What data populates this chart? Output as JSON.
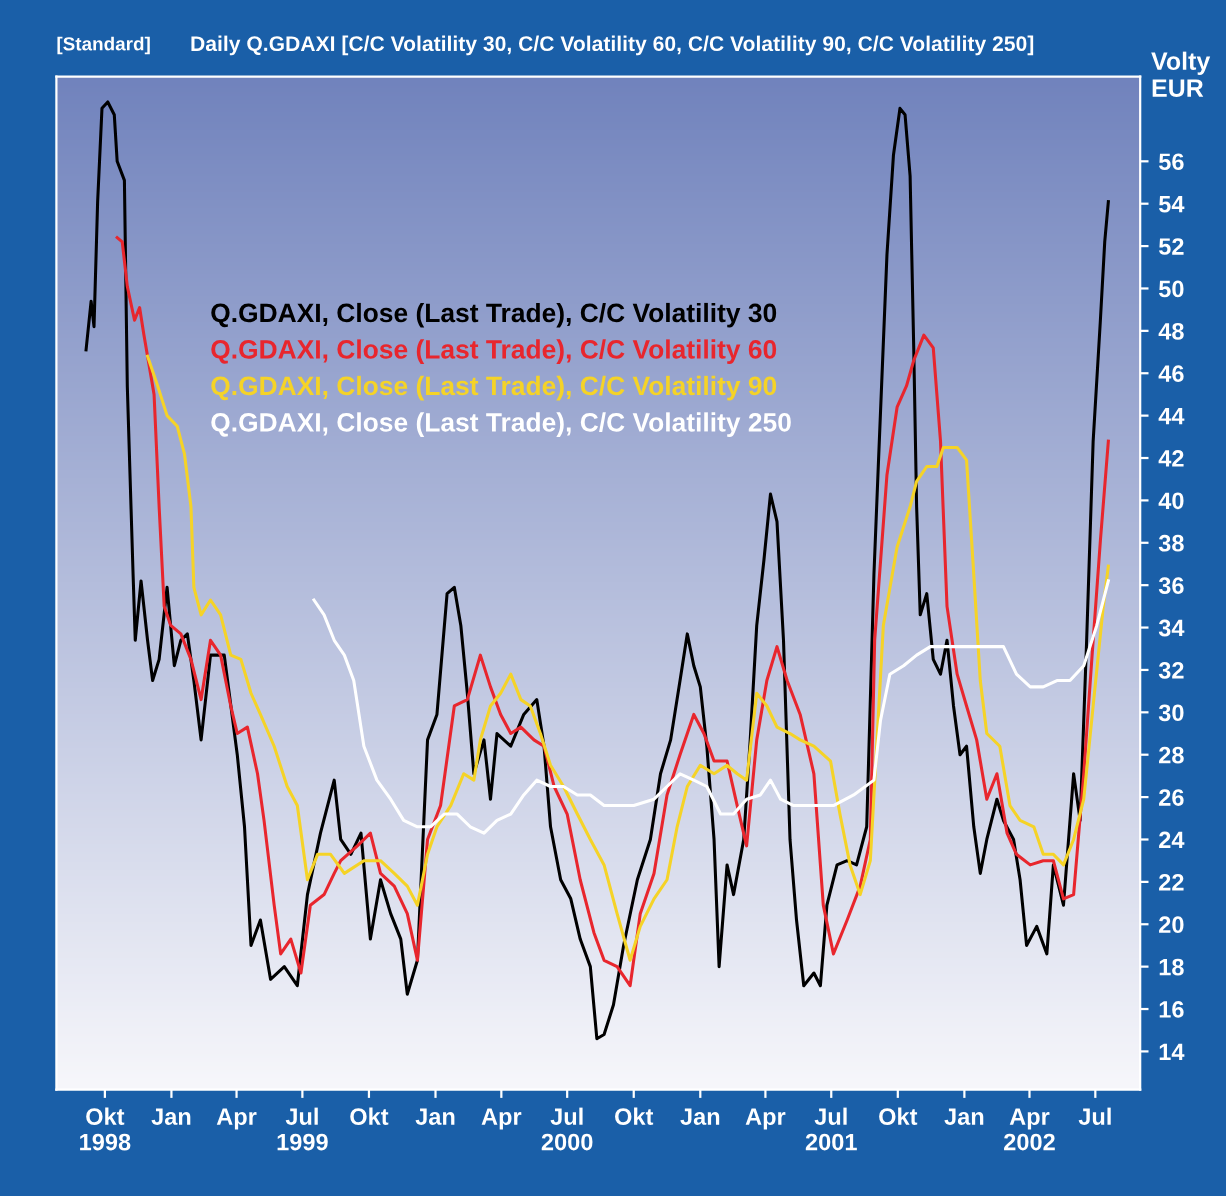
{
  "chart_data": {
    "type": "line",
    "title": "Daily Q.GDAXI [C/C Volatility 30, C/C Volatility 60, C/C Volatility 90, C/C Volatility 250]",
    "subtitle": "[Standard]",
    "ylabel": "Volty\nEUR",
    "legend": "top left",
    "line_style": "solid",
    "xlim": [
      "1998-07-26",
      "2002-09-01"
    ],
    "ylim": [
      12.2,
      60
    ],
    "yticks": [
      14,
      16,
      18,
      20,
      22,
      24,
      26,
      28,
      30,
      32,
      34,
      36,
      38,
      40,
      42,
      44,
      46,
      48,
      50,
      52,
      54,
      56
    ],
    "xticks": [
      {
        "value": "1998-10-01",
        "label": "Okt\n1998"
      },
      {
        "value": "1999-01-01",
        "label": "Jan"
      },
      {
        "value": "1999-04-01",
        "label": "Apr"
      },
      {
        "value": "1999-07-01",
        "label": "Jul\n1999"
      },
      {
        "value": "1999-10-01",
        "label": "Okt"
      },
      {
        "value": "2000-01-01",
        "label": "Jan"
      },
      {
        "value": "2000-04-01",
        "label": "Apr"
      },
      {
        "value": "2000-07-01",
        "label": "Jul\n2000"
      },
      {
        "value": "2000-10-01",
        "label": "Okt"
      },
      {
        "value": "2001-01-01",
        "label": "Jan"
      },
      {
        "value": "2001-04-01",
        "label": "Apr"
      },
      {
        "value": "2001-07-01",
        "label": "Jul\n2001"
      },
      {
        "value": "2001-10-01",
        "label": "Okt"
      },
      {
        "value": "2002-01-01",
        "label": "Jan"
      },
      {
        "value": "2002-04-01",
        "label": "Apr\n2002"
      },
      {
        "value": "2002-07-01",
        "label": "Jul"
      }
    ],
    "series": [
      {
        "name": "Q.GDAXI, Close (Last Trade), C/C Volatility 30",
        "color": "#000000",
        "x": [
          "1998-09-05",
          "1998-09-12",
          "1998-09-16",
          "1998-09-21",
          "1998-09-27",
          "1998-10-05",
          "1998-10-14",
          "1998-10-18",
          "1998-10-28",
          "1998-11-01",
          "1998-11-09",
          "1998-11-12",
          "1998-11-20",
          "1998-11-29",
          "1998-12-06",
          "1998-12-15",
          "1998-12-26",
          "1999-01-05",
          "1999-01-14",
          "1999-01-23",
          "1999-02-01",
          "1999-02-11",
          "1999-02-24",
          "1999-03-15",
          "1999-04-02",
          "1999-04-12",
          "1999-04-21",
          "1999-05-04",
          "1999-05-18",
          "1999-06-06",
          "1999-06-24",
          "1999-07-08",
          "1999-07-26",
          "1999-08-14",
          "1999-08-23",
          "1999-09-06",
          "1999-09-20",
          "1999-10-03",
          "1999-10-17",
          "1999-10-31",
          "1999-11-14",
          "1999-11-23",
          "1999-12-07",
          "1999-12-21",
          "2000-01-03",
          "2000-01-17",
          "2000-01-27",
          "2000-02-05",
          "2000-02-14",
          "2000-02-23",
          "2000-03-08",
          "2000-03-17",
          "2000-03-26",
          "2000-04-14",
          "2000-05-02",
          "2000-05-20",
          "2000-05-30",
          "2000-06-08",
          "2000-06-22",
          "2000-07-06",
          "2000-07-19",
          "2000-08-02",
          "2000-08-11",
          "2000-08-21",
          "2000-09-03",
          "2000-09-17",
          "2000-10-06",
          "2000-10-24",
          "2000-11-07",
          "2000-11-21",
          "2000-12-04",
          "2000-12-14",
          "2000-12-23",
          "2001-01-01",
          "2001-01-10",
          "2001-01-20",
          "2001-01-27",
          "2001-02-07",
          "2001-02-16",
          "2001-03-02",
          "2001-03-11",
          "2001-03-20",
          "2001-03-30",
          "2001-04-08",
          "2001-04-17",
          "2001-04-26",
          "2001-05-05",
          "2001-05-14",
          "2001-05-24",
          "2001-06-07",
          "2001-06-16",
          "2001-06-25",
          "2001-07-09",
          "2001-07-23",
          "2001-08-05",
          "2001-08-19",
          "2001-08-29",
          "2001-09-04",
          "2001-09-16",
          "2001-09-25",
          "2001-10-04",
          "2001-10-11",
          "2001-10-18",
          "2001-10-23",
          "2001-10-27",
          "2001-11-01",
          "2001-11-10",
          "2001-11-19",
          "2001-11-29",
          "2001-12-08",
          "2001-12-17",
          "2001-12-26",
          "2002-01-04",
          "2002-01-14",
          "2002-01-23",
          "2002-02-01",
          "2002-02-15",
          "2002-02-24",
          "2002-03-10",
          "2002-03-19",
          "2002-03-28",
          "2002-04-11",
          "2002-04-25",
          "2002-05-04",
          "2002-05-18",
          "2002-06-01",
          "2002-06-10",
          "2002-06-19",
          "2002-06-28",
          "2002-07-08",
          "2002-07-14",
          "2002-07-19"
        ],
        "values": [
          47.1,
          49.4,
          48.2,
          54.1,
          58.5,
          58.8,
          58.2,
          56.0,
          55.1,
          45.4,
          36.5,
          33.4,
          36.2,
          33.4,
          31.5,
          32.5,
          35.9,
          32.2,
          33.4,
          33.7,
          31.5,
          28.7,
          32.7,
          32.7,
          28.0,
          24.6,
          19.0,
          20.2,
          17.4,
          18.0,
          17.1,
          21.4,
          24.3,
          26.8,
          24.0,
          23.3,
          24.3,
          19.3,
          22.1,
          20.5,
          19.3,
          16.7,
          18.3,
          28.7,
          29.9,
          35.6,
          35.9,
          34.1,
          30.9,
          27.1,
          28.7,
          25.9,
          29.0,
          28.4,
          29.9,
          30.6,
          28.4,
          24.6,
          22.1,
          21.2,
          19.3,
          18.0,
          14.6,
          14.8,
          16.2,
          19.0,
          22.1,
          24.0,
          27.1,
          28.7,
          31.5,
          33.7,
          32.2,
          31.2,
          28.4,
          24.0,
          18.0,
          22.8,
          21.4,
          24.0,
          28.7,
          34.1,
          37.2,
          40.3,
          39.0,
          33.4,
          24.0,
          20.2,
          17.1,
          17.7,
          17.1,
          20.9,
          22.8,
          23.0,
          22.8,
          24.6,
          36.5,
          41.6,
          51.6,
          56.3,
          58.5,
          58.2,
          55.3,
          47.2,
          39.7,
          34.6,
          35.6,
          32.5,
          31.8,
          33.4,
          30.3,
          28.0,
          28.4,
          24.6,
          22.4,
          24.0,
          25.9,
          24.9,
          24.0,
          22.1,
          19.0,
          19.9,
          18.6,
          22.8,
          20.9,
          27.1,
          24.9,
          33.4,
          42.8,
          48.5,
          52.2,
          54.1
        ]
      },
      {
        "name": "Q.GDAXI, Close (Last Trade), C/C Volatility 60",
        "color": "#e8262d",
        "x": [
          "1998-10-18",
          "1998-10-25",
          "1998-11-01",
          "1998-11-11",
          "1998-11-18",
          "1998-11-24",
          "1998-12-08",
          "1998-12-15",
          "1998-12-22",
          "1998-12-31",
          "1999-01-14",
          "1999-01-28",
          "1999-02-11",
          "1999-02-24",
          "1999-03-10",
          "1999-03-24",
          "1999-04-02",
          "1999-04-16",
          "1999-04-30",
          "1999-05-09",
          "1999-05-23",
          "1999-06-01",
          "1999-06-15",
          "1999-06-29",
          "1999-07-12",
          "1999-07-31",
          "1999-08-14",
          "1999-08-23",
          "1999-09-15",
          "1999-10-03",
          "1999-10-17",
          "1999-11-05",
          "1999-11-23",
          "1999-12-07",
          "1999-12-21",
          "2000-01-08",
          "2000-01-27",
          "2000-02-14",
          "2000-03-03",
          "2000-03-17",
          "2000-03-31",
          "2000-04-14",
          "2000-04-28",
          "2000-05-16",
          "2000-05-30",
          "2000-06-13",
          "2000-07-01",
          "2000-07-19",
          "2000-08-07",
          "2000-08-21",
          "2000-09-08",
          "2000-09-26",
          "2000-10-10",
          "2000-10-29",
          "2000-11-16",
          "2000-12-04",
          "2000-12-23",
          "2001-01-06",
          "2001-01-20",
          "2001-02-07",
          "2001-02-21",
          "2001-03-06",
          "2001-03-20",
          "2001-04-03",
          "2001-04-17",
          "2001-05-01",
          "2001-05-19",
          "2001-06-07",
          "2001-06-20",
          "2001-07-04",
          "2001-07-23",
          "2001-08-10",
          "2001-08-24",
          "2001-08-30",
          "2001-09-16",
          "2001-09-30",
          "2001-10-13",
          "2001-10-23",
          "2001-11-06",
          "2001-11-19",
          "2001-11-29",
          "2001-12-08",
          "2001-12-22",
          "2002-01-04",
          "2002-01-18",
          "2002-02-01",
          "2002-02-15",
          "2002-03-01",
          "2002-03-14",
          "2002-04-02",
          "2002-04-20",
          "2002-05-04",
          "2002-05-18",
          "2002-06-01",
          "2002-06-15",
          "2002-06-28",
          "2002-07-08",
          "2002-07-19"
        ],
        "values": [
          52.4,
          52.2,
          50.1,
          48.5,
          49.1,
          47.8,
          45.0,
          39.7,
          35.0,
          34.1,
          33.7,
          32.5,
          30.6,
          33.4,
          32.7,
          30.3,
          29.0,
          29.3,
          27.1,
          24.9,
          20.9,
          18.6,
          19.3,
          17.7,
          20.9,
          21.4,
          22.4,
          23.0,
          23.7,
          24.3,
          22.4,
          21.8,
          20.5,
          18.3,
          24.0,
          25.6,
          30.3,
          30.6,
          32.7,
          31.2,
          29.9,
          29.0,
          29.3,
          28.7,
          28.4,
          26.5,
          25.2,
          22.1,
          19.6,
          18.3,
          18.0,
          17.1,
          20.5,
          22.4,
          26.1,
          28.0,
          29.9,
          29.0,
          27.7,
          27.7,
          25.6,
          23.7,
          28.7,
          31.5,
          33.1,
          31.5,
          29.9,
          27.1,
          20.9,
          18.6,
          20.2,
          21.8,
          24.0,
          33.4,
          41.2,
          44.4,
          45.4,
          46.6,
          47.8,
          47.2,
          42.8,
          35.0,
          31.8,
          30.3,
          28.7,
          25.9,
          27.1,
          24.3,
          23.3,
          22.8,
          23.0,
          23.0,
          21.2,
          21.4,
          27.1,
          33.4,
          38.1,
          42.8
        ]
      },
      {
        "name": "Q.GDAXI, Close (Last Trade), C/C Volatility 90",
        "color": "#f5d327",
        "x": [
          "1998-11-29",
          "1998-12-13",
          "1998-12-26",
          "1999-01-09",
          "1999-01-19",
          "1999-01-28",
          "1999-02-01",
          "1999-02-11",
          "1999-02-24",
          "1999-03-10",
          "1999-03-24",
          "1999-04-07",
          "1999-04-21",
          "1999-05-04",
          "1999-05-23",
          "1999-06-10",
          "1999-06-24",
          "1999-07-08",
          "1999-07-22",
          "1999-08-09",
          "1999-08-28",
          "1999-09-24",
          "1999-10-17",
          "1999-11-05",
          "1999-11-23",
          "1999-12-07",
          "1999-12-21",
          "2000-01-03",
          "2000-01-22",
          "2000-02-09",
          "2000-02-23",
          "2000-03-03",
          "2000-03-17",
          "2000-03-31",
          "2000-04-14",
          "2000-04-28",
          "2000-05-11",
          "2000-05-25",
          "2000-06-08",
          "2000-06-26",
          "2000-07-15",
          "2000-08-02",
          "2000-08-21",
          "2000-09-08",
          "2000-09-26",
          "2000-10-10",
          "2000-10-29",
          "2000-11-16",
          "2000-11-30",
          "2000-12-14",
          "2001-01-01",
          "2001-01-20",
          "2001-02-07",
          "2001-02-21",
          "2001-03-06",
          "2001-03-20",
          "2001-04-03",
          "2001-04-17",
          "2001-05-05",
          "2001-05-19",
          "2001-06-07",
          "2001-06-30",
          "2001-07-13",
          "2001-07-27",
          "2001-08-10",
          "2001-08-24",
          "2001-09-11",
          "2001-09-30",
          "2001-10-18",
          "2001-10-27",
          "2001-11-10",
          "2001-11-24",
          "2001-12-03",
          "2001-12-22",
          "2002-01-04",
          "2002-01-14",
          "2002-01-23",
          "2002-02-01",
          "2002-02-19",
          "2002-03-05",
          "2002-03-19",
          "2002-04-07",
          "2002-04-20",
          "2002-05-04",
          "2002-05-18",
          "2002-06-01",
          "2002-06-15",
          "2002-06-28",
          "2002-07-12",
          "2002-07-19"
        ],
        "values": [
          46.8,
          45.4,
          44.0,
          43.5,
          42.2,
          39.7,
          35.9,
          34.6,
          35.3,
          34.6,
          32.7,
          32.5,
          30.9,
          29.9,
          28.4,
          26.5,
          25.6,
          22.1,
          23.3,
          23.3,
          22.4,
          23.0,
          23.0,
          22.4,
          21.8,
          20.9,
          23.3,
          24.6,
          25.6,
          27.1,
          26.8,
          28.7,
          30.3,
          30.9,
          31.8,
          30.6,
          30.3,
          29.0,
          27.5,
          26.5,
          25.2,
          24.0,
          22.8,
          20.5,
          18.3,
          19.9,
          21.2,
          22.1,
          24.6,
          26.5,
          27.5,
          27.1,
          27.5,
          27.1,
          26.8,
          30.9,
          30.3,
          29.3,
          29.0,
          28.7,
          28.4,
          27.7,
          25.2,
          22.8,
          21.4,
          23.0,
          34.1,
          37.8,
          39.7,
          40.9,
          41.6,
          41.6,
          42.5,
          42.5,
          41.9,
          36.5,
          31.5,
          29.0,
          28.4,
          25.6,
          24.9,
          24.6,
          23.3,
          23.3,
          22.8,
          24.0,
          25.9,
          30.3,
          35.0,
          36.9
        ]
      },
      {
        "name": "Q.GDAXI, Close (Last Trade), C/C Volatility 250",
        "color": "#ffffff",
        "x": [
          "1999-07-17",
          "1999-07-31",
          "1999-08-14",
          "1999-08-28",
          "1999-09-10",
          "1999-09-24",
          "1999-10-12",
          "1999-10-31",
          "1999-11-18",
          "1999-12-07",
          "1999-12-25",
          "2000-01-13",
          "2000-01-31",
          "2000-02-18",
          "2000-03-08",
          "2000-03-26",
          "2000-04-14",
          "2000-05-02",
          "2000-05-20",
          "2000-06-08",
          "2000-06-26",
          "2000-07-15",
          "2000-08-02",
          "2000-08-21",
          "2000-10-01",
          "2000-10-29",
          "2000-11-16",
          "2000-12-04",
          "2000-12-23",
          "2001-01-10",
          "2001-01-29",
          "2001-02-16",
          "2001-03-06",
          "2001-03-25",
          "2001-04-08",
          "2001-04-22",
          "2001-05-10",
          "2001-06-07",
          "2001-07-04",
          "2001-08-01",
          "2001-08-29",
          "2001-09-07",
          "2001-09-20",
          "2001-10-09",
          "2001-10-27",
          "2001-11-15",
          "2001-12-22",
          "2002-02-06",
          "2002-02-24",
          "2002-03-14",
          "2002-04-02",
          "2002-04-20",
          "2002-05-09",
          "2002-05-27",
          "2002-06-15",
          "2002-07-03",
          "2002-07-19"
        ],
        "values": [
          35.3,
          34.6,
          33.4,
          32.7,
          31.5,
          28.4,
          26.8,
          25.9,
          24.9,
          24.6,
          24.6,
          25.2,
          25.2,
          24.6,
          24.3,
          24.9,
          25.2,
          26.1,
          26.8,
          26.5,
          26.5,
          26.1,
          26.1,
          25.6,
          25.6,
          25.9,
          26.5,
          27.1,
          26.8,
          26.5,
          25.2,
          25.2,
          25.9,
          26.1,
          26.8,
          25.9,
          25.6,
          25.6,
          25.6,
          26.1,
          26.8,
          29.6,
          31.8,
          32.2,
          32.7,
          33.1,
          33.1,
          33.1,
          33.1,
          31.8,
          31.2,
          31.2,
          31.5,
          31.5,
          32.2,
          34.1,
          36.2
        ]
      }
    ]
  }
}
